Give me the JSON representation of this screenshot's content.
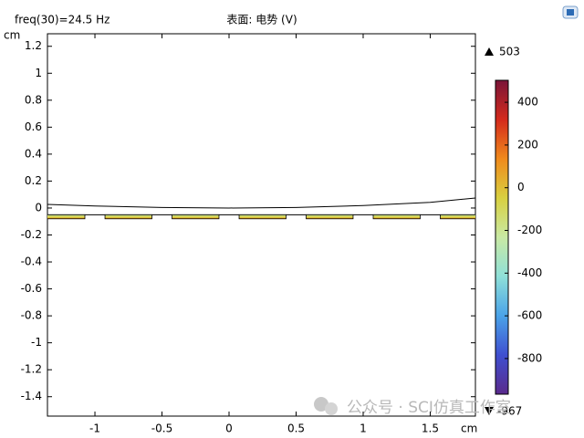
{
  "chart_data": {
    "type": "surface",
    "title": "freq(30)=24.5 Hz",
    "subtitle": "表面: 电势 (V)",
    "y_unit": "cm",
    "x_unit": "cm",
    "xlim": [
      -1.354,
      1.837
    ],
    "ylim": [
      -1.544,
      1.293
    ],
    "xticks": [
      -1,
      -0.5,
      0,
      0.5,
      1,
      1.5
    ],
    "yticks": [
      1.2,
      1,
      0.8,
      0.6,
      0.4,
      0.2,
      0,
      -0.2,
      -0.4,
      -0.6,
      -0.8,
      -1,
      -1.2,
      -1.4
    ],
    "boundary": {
      "color": "#000000",
      "x": [
        -1.354,
        -1,
        -0.5,
        0,
        0.5,
        1,
        1.5,
        1.837
      ],
      "y": [
        0.027,
        0.015,
        0.004,
        0,
        0.004,
        0.018,
        0.042,
        0.074
      ]
    },
    "electrodes": {
      "x0": [
        -1.425,
        -0.925,
        -0.425,
        0.075,
        0.575,
        1.075,
        1.575
      ],
      "x1": [
        -1.075,
        -0.575,
        -0.075,
        0.425,
        0.925,
        1.425,
        1.925
      ],
      "y0": -0.08,
      "y1": -0.05
    },
    "colorbar": {
      "max": 503,
      "min": -967,
      "ticks": [
        400,
        200,
        0,
        -200,
        -400,
        -600,
        -800
      ],
      "colormap": [
        "#5a2a8c",
        "#3f4fd0",
        "#4aa3e8",
        "#8fe0d8",
        "#c9e9a4",
        "#d8d040",
        "#f08a1c",
        "#d42a1c",
        "#7a1438"
      ]
    }
  },
  "watermark": "公众号 · SCI仿真工作室"
}
